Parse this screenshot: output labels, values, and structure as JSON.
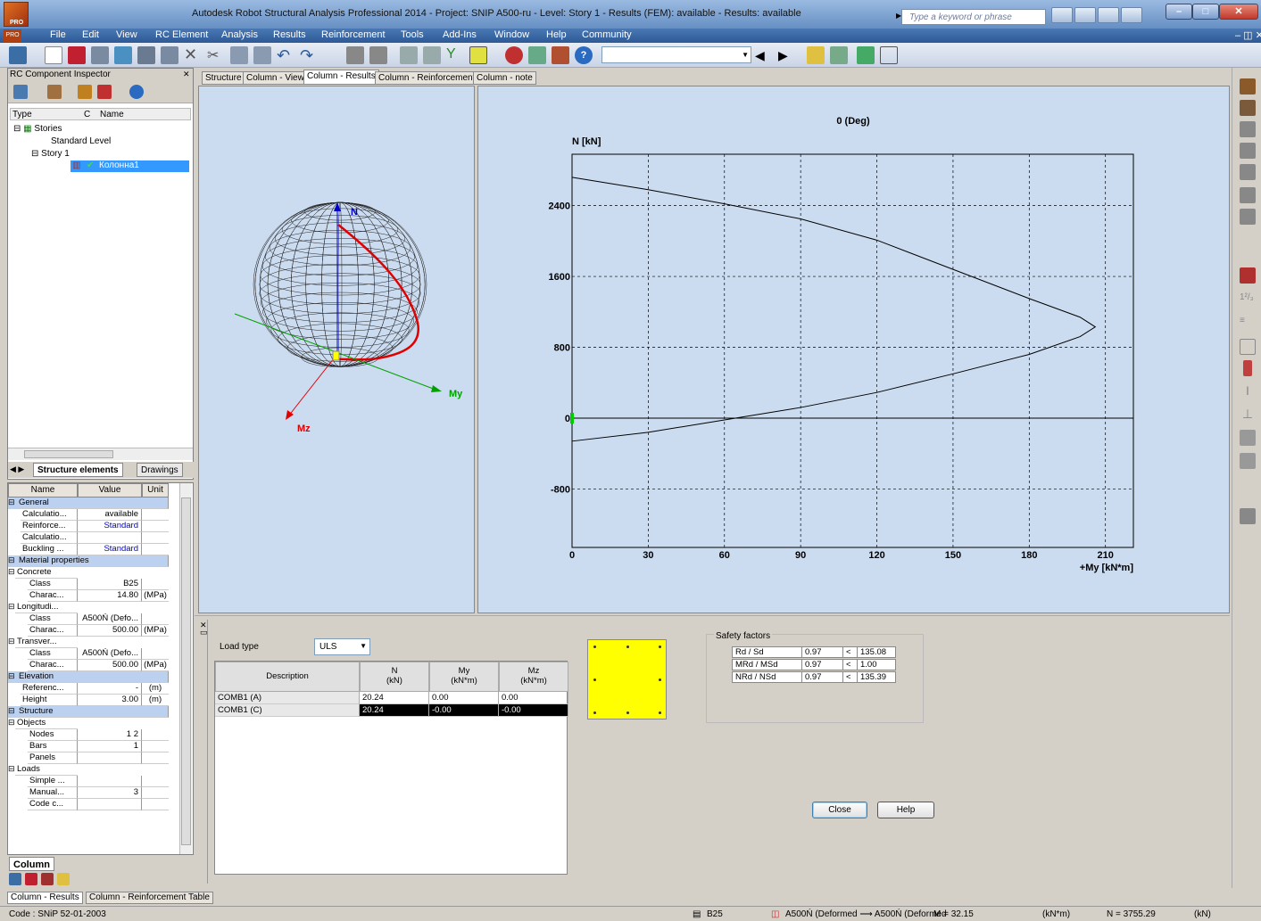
{
  "window": {
    "title": "Autodesk Robot Structural Analysis Professional 2014 - Project: SNIP A500-ru - Level: Story 1 - Results (FEM): available - Results: available",
    "search_placeholder": "Type a keyword or phrase",
    "logo_text": "PRO"
  },
  "menu": [
    "File",
    "Edit",
    "View",
    "RC Element",
    "Analysis",
    "Results",
    "Reinforcement",
    "Tools",
    "Add-Ins",
    "Window",
    "Help",
    "Community"
  ],
  "inspector": {
    "title": "RC Component Inspector",
    "col_type": "Type",
    "col_c": "C",
    "col_name": "Name",
    "tree": {
      "stories": "Stories",
      "standard_level": "Standard Level",
      "story1": "Story 1",
      "column": "Колонна1"
    },
    "tabs": [
      "Structure elements",
      "Drawings"
    ]
  },
  "properties": {
    "headers": {
      "name": "Name",
      "value": "Value",
      "unit": "Unit"
    },
    "rows": [
      {
        "type": "cat",
        "name": "General"
      },
      {
        "name": "Calculatio...",
        "value": "available",
        "unit": ""
      },
      {
        "name": "Reinforce...",
        "value": "Standard",
        "unit": "",
        "blue": true
      },
      {
        "name": "Calculatio...",
        "value": "",
        "unit": ""
      },
      {
        "name": "Buckling ...",
        "value": "Standard",
        "unit": "",
        "blue": true
      },
      {
        "type": "cat",
        "name": "Material properties"
      },
      {
        "type": "sub",
        "name": "Concrete"
      },
      {
        "name": "Class",
        "value": "B25",
        "unit": "",
        "indent": 2
      },
      {
        "name": "Charac...",
        "value": "14.80",
        "unit": "(MPa)",
        "indent": 2
      },
      {
        "type": "sub",
        "name": "Longitudi..."
      },
      {
        "name": "Class",
        "value": "A500Ń (Defo...",
        "unit": "",
        "indent": 2
      },
      {
        "name": "Charac...",
        "value": "500.00",
        "unit": "(MPa)",
        "indent": 2
      },
      {
        "type": "sub",
        "name": "Transver..."
      },
      {
        "name": "Class",
        "value": "A500Ń (Defo...",
        "unit": "",
        "indent": 2
      },
      {
        "name": "Charac...",
        "value": "500.00",
        "unit": "(MPa)",
        "indent": 2
      },
      {
        "type": "cat",
        "name": "Elevation"
      },
      {
        "name": "Referenc...",
        "value": "-",
        "unit": "(m)"
      },
      {
        "name": "Height",
        "value": "3.00",
        "unit": "(m)"
      },
      {
        "type": "cat",
        "name": "Structure"
      },
      {
        "type": "sub",
        "name": "Objects"
      },
      {
        "name": "Nodes",
        "value": "1 2",
        "unit": "",
        "indent": 2
      },
      {
        "name": "Bars",
        "value": "1",
        "unit": "",
        "indent": 2
      },
      {
        "name": "Panels",
        "value": "",
        "unit": "",
        "indent": 2
      },
      {
        "type": "sub",
        "name": "Loads"
      },
      {
        "name": "Simple ...",
        "value": "",
        "unit": "",
        "indent": 2
      },
      {
        "name": "Manual...",
        "value": "3",
        "unit": "",
        "indent": 2
      },
      {
        "name": "Code c...",
        "value": "",
        "unit": "",
        "indent": 2
      }
    ],
    "bottom_tab": "Column"
  },
  "view_tabs": [
    "Structure",
    "Column - View",
    "Column - Results",
    "Column - Reinforcement",
    "Column - note"
  ],
  "view3d": {
    "label_n": "N",
    "label_my": "My",
    "label_mz": "Mz"
  },
  "chart_data": {
    "type": "line",
    "title": "0 (Deg)",
    "ylabel": "N [kN]",
    "xlabel": "+My [kN*m]",
    "xlim": [
      0,
      221
    ],
    "ylim": [
      -1460,
      2980
    ],
    "x_ticks": [
      0,
      30,
      60,
      90,
      120,
      150,
      180,
      210
    ],
    "y_ticks": [
      -800,
      0,
      800,
      1600,
      2400
    ],
    "y_tick_labels": [
      "-800",
      "0",
      "800",
      "1600",
      "2400"
    ],
    "series": [
      {
        "x": [
          0,
          30,
          60,
          90,
          120,
          150,
          180,
          200,
          206,
          200,
          180,
          150,
          120,
          90,
          60,
          30,
          0
        ],
        "y": [
          2720,
          2580,
          2420,
          2250,
          2010,
          1680,
          1350,
          1140,
          1030,
          920,
          720,
          500,
          290,
          120,
          -20,
          -160,
          -260
        ]
      }
    ],
    "marker_point": {
      "x": 0,
      "y": 0
    }
  },
  "lower": {
    "load_type_label": "Load type",
    "load_type_value": "ULS",
    "table": {
      "headers": [
        "Description",
        "N\n(kN)",
        "My\n(kN*m)",
        "Mz\n(kN*m)"
      ],
      "rows": [
        {
          "desc": "COMB1 (A)",
          "n": "20.24",
          "my": "0.00",
          "mz": "0.00"
        },
        {
          "desc": "COMB1 (C)",
          "n": "20.24",
          "my": "-0.00",
          "mz": "-0.00"
        }
      ]
    },
    "safety": {
      "title": "Safety factors",
      "rows": [
        {
          "label": "Rd / Sd",
          "val": "0.97",
          "op": "<",
          "limit": "135.08"
        },
        {
          "label": "MRd / MSd",
          "val": "0.97",
          "op": "<",
          "limit": "1.00"
        },
        {
          "label": "NRd / NSd",
          "val": "0.97",
          "op": "<",
          "limit": "135.39"
        }
      ]
    },
    "close": "Close",
    "help": "Help"
  },
  "bottom_tabs": [
    "Column - Results",
    "Column - Reinforcement Table"
  ],
  "status": {
    "code": "Code : SNiP 52-01-2003",
    "concrete": "B25",
    "steel": "A500Ń (Deformed ⟶ A500Ń (Deformed",
    "m": "M = 32.15",
    "m_unit": "(kN*m)",
    "n": "N = 3755.29",
    "n_unit": "(kN)"
  }
}
